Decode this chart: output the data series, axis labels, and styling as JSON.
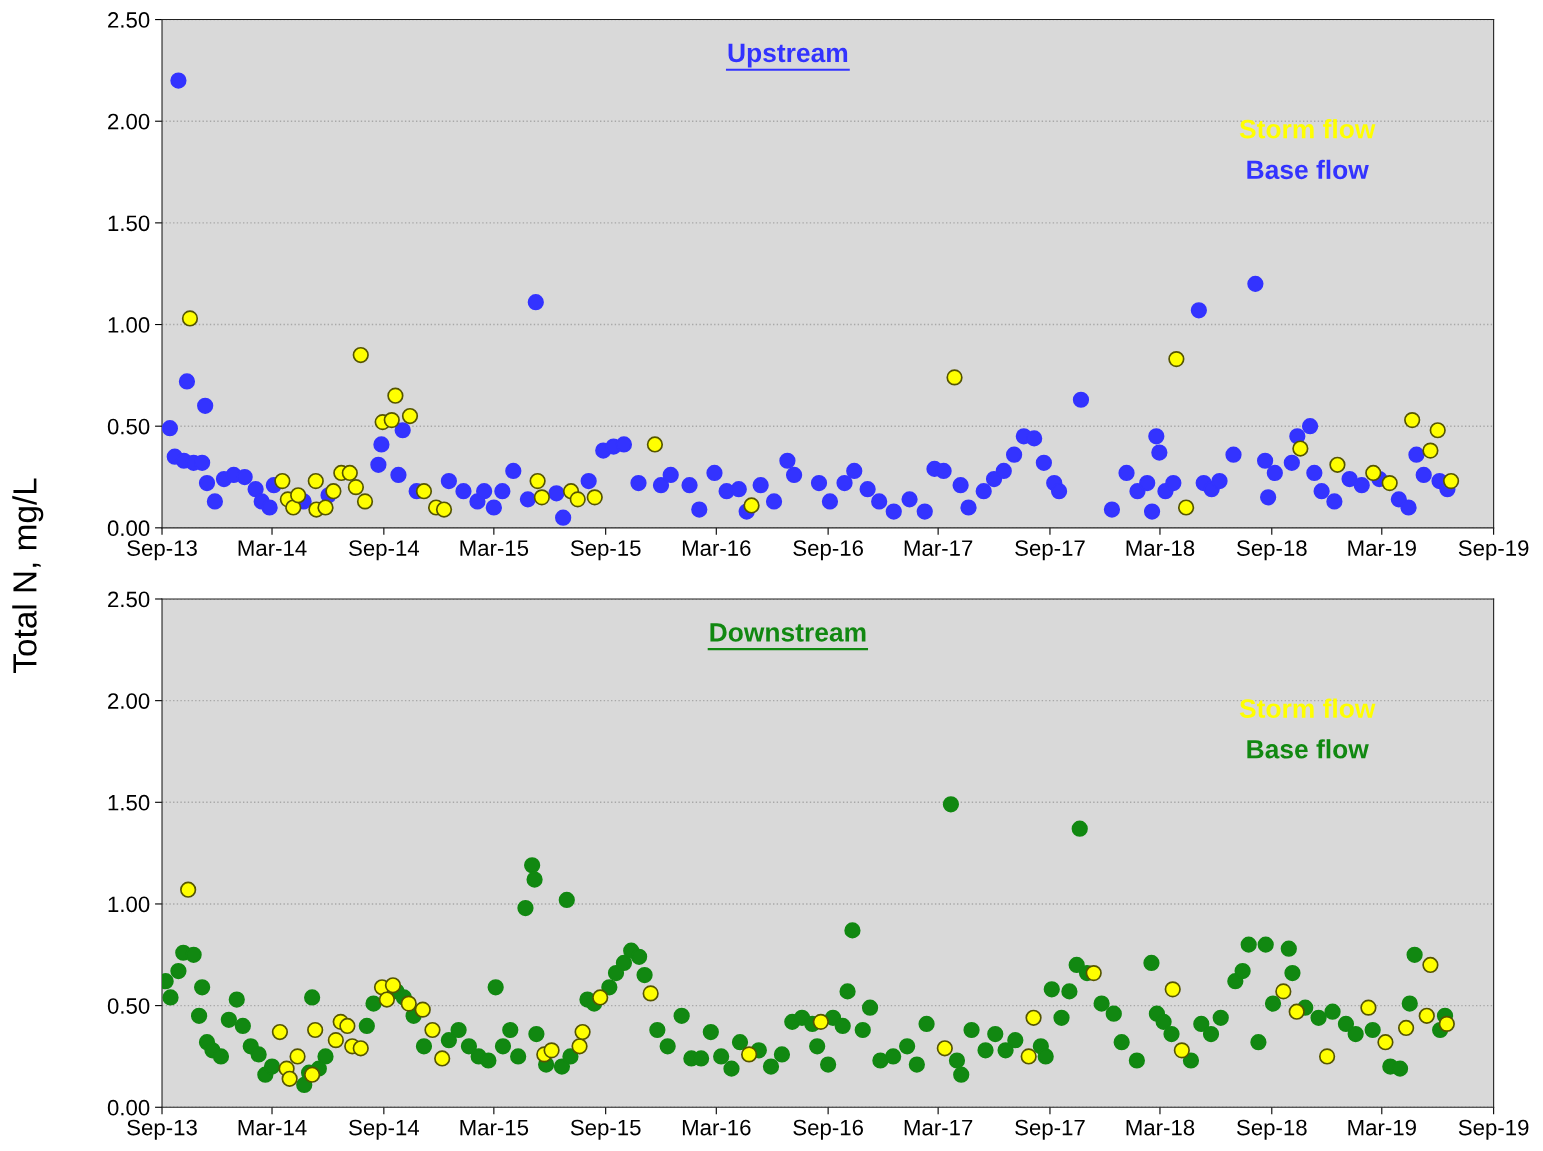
{
  "chart_data": [
    {
      "type": "scatter",
      "title": "Upstream",
      "ylabel": "Total N, mg/L",
      "xlim": [
        "2013-09",
        "2019-09"
      ],
      "ylim": [
        0,
        2.5
      ],
      "xticks": [
        {
          "value": "2013-09",
          "label": "Sep-13"
        },
        {
          "value": "2014-03",
          "label": "Mar-14"
        },
        {
          "value": "2014-09",
          "label": "Sep-14"
        },
        {
          "value": "2015-03",
          "label": "Mar-15"
        },
        {
          "value": "2015-09",
          "label": "Sep-15"
        },
        {
          "value": "2016-03",
          "label": "Mar-16"
        },
        {
          "value": "2016-09",
          "label": "Sep-16"
        },
        {
          "value": "2017-03",
          "label": "Mar-17"
        },
        {
          "value": "2017-09",
          "label": "Sep-17"
        },
        {
          "value": "2018-03",
          "label": "Mar-18"
        },
        {
          "value": "2018-09",
          "label": "Sep-18"
        },
        {
          "value": "2019-03",
          "label": "Mar-19"
        },
        {
          "value": "2019-09",
          "label": "Sep-19"
        }
      ],
      "yticks": [
        {
          "value": 0,
          "label": "0.00"
        },
        {
          "value": 0.5,
          "label": "0.50"
        },
        {
          "value": 1,
          "label": "1.00"
        },
        {
          "value": 1.5,
          "label": "1.50"
        },
        {
          "value": 2,
          "label": "2.00"
        },
        {
          "value": 2.5,
          "label": "2.50"
        }
      ],
      "grid": "y",
      "legend": "top right",
      "marker": "circle",
      "series": [
        {
          "name": "Storm flow",
          "color": "#ffff00",
          "x": [
            "2013-10-17",
            "2014-03-18",
            "2014-03-27",
            "2014-04-05",
            "2014-04-13",
            "2014-05-12",
            "2014-05-13",
            "2014-05-28",
            "2014-06-10",
            "2014-06-23",
            "2014-07-07",
            "2014-07-17",
            "2014-07-25",
            "2014-08-01",
            "2014-08-30",
            "2014-09-14",
            "2014-09-20",
            "2014-10-14",
            "2014-11-06",
            "2014-11-26",
            "2014-12-09",
            "2015-05-12",
            "2015-05-19",
            "2015-07-06",
            "2015-07-17",
            "2015-08-14",
            "2015-11-21",
            "2016-04-28",
            "2017-03-28",
            "2018-03-28",
            "2018-04-13",
            "2018-10-18",
            "2018-12-18",
            "2019-02-15",
            "2019-03-14",
            "2019-04-20",
            "2019-05-20",
            "2019-06-01",
            "2019-06-23"
          ],
          "values": [
            1.03,
            0.23,
            0.14,
            0.1,
            0.16,
            0.23,
            0.09,
            0.1,
            0.18,
            0.27,
            0.27,
            0.2,
            0.85,
            0.13,
            0.52,
            0.53,
            0.65,
            0.55,
            0.18,
            0.1,
            0.09,
            0.23,
            0.15,
            0.18,
            0.14,
            0.15,
            0.41,
            0.11,
            0.74,
            0.83,
            0.1,
            0.39,
            0.31,
            0.27,
            0.22,
            0.53,
            0.38,
            0.48,
            0.23
          ]
        },
        {
          "name": "Base flow",
          "color": "#3333ff",
          "x": [
            "2013-09-14",
            "2013-09-22",
            "2013-09-28",
            "2013-10-07",
            "2013-10-12",
            "2013-10-23",
            "2013-11-06",
            "2013-11-11",
            "2013-11-14",
            "2013-11-27",
            "2013-12-12",
            "2013-12-28",
            "2014-01-15",
            "2014-02-02",
            "2014-02-12",
            "2014-02-25",
            "2014-03-04",
            "2014-04-22",
            "2014-06-02",
            "2014-08-23",
            "2014-08-28",
            "2014-09-25",
            "2014-10-02",
            "2014-10-25",
            "2014-12-17",
            "2015-01-10",
            "2015-02-02",
            "2015-02-13",
            "2015-03-01",
            "2015-03-15",
            "2015-04-02",
            "2015-04-26",
            "2015-05-09",
            "2015-06-12",
            "2015-06-23",
            "2015-08-04",
            "2015-08-28",
            "2015-09-14",
            "2015-10-01",
            "2015-10-25",
            "2015-12-01",
            "2015-12-17",
            "2016-01-17",
            "2016-02-02",
            "2016-02-27",
            "2016-03-18",
            "2016-04-07",
            "2016-04-20",
            "2016-05-13",
            "2016-06-04",
            "2016-06-26",
            "2016-07-07",
            "2016-08-17",
            "2016-09-04",
            "2016-09-28",
            "2016-10-14",
            "2016-11-05",
            "2016-11-24",
            "2016-12-18",
            "2017-01-13",
            "2017-02-07",
            "2017-02-23",
            "2017-03-10",
            "2017-04-07",
            "2017-04-20",
            "2017-05-15",
            "2017-06-01",
            "2017-06-17",
            "2017-07-04",
            "2017-07-20",
            "2017-08-06",
            "2017-08-22",
            "2017-09-08",
            "2017-09-16",
            "2017-10-22",
            "2017-12-12",
            "2018-01-05",
            "2018-01-23",
            "2018-02-08",
            "2018-02-16",
            "2018-02-23",
            "2018-02-28",
            "2018-03-10",
            "2018-03-23",
            "2018-05-04",
            "2018-05-12",
            "2018-05-25",
            "2018-06-07",
            "2018-06-30",
            "2018-08-05",
            "2018-08-21",
            "2018-08-26",
            "2018-09-06",
            "2018-10-04",
            "2018-10-13",
            "2018-11-03",
            "2018-11-10",
            "2018-11-22",
            "2018-12-13",
            "2019-01-07",
            "2019-01-27",
            "2019-02-25",
            "2019-03-29",
            "2019-04-14",
            "2019-04-27",
            "2019-05-09",
            "2019-06-04",
            "2019-06-17"
          ],
          "values": [
            0.49,
            0.35,
            2.2,
            0.33,
            0.72,
            0.32,
            0.32,
            0.6,
            0.22,
            0.13,
            0.24,
            0.26,
            0.25,
            0.19,
            0.13,
            0.1,
            0.21,
            0.13,
            0.16,
            0.31,
            0.41,
            0.26,
            0.48,
            0.18,
            0.23,
            0.18,
            0.13,
            0.18,
            0.1,
            0.18,
            0.28,
            0.14,
            1.11,
            0.17,
            0.05,
            0.23,
            0.38,
            0.4,
            0.41,
            0.22,
            0.21,
            0.26,
            0.21,
            0.09,
            0.27,
            0.18,
            0.19,
            0.08,
            0.21,
            0.13,
            0.33,
            0.26,
            0.22,
            0.13,
            0.22,
            0.28,
            0.19,
            0.13,
            0.08,
            0.14,
            0.08,
            0.29,
            0.28,
            0.21,
            0.1,
            0.18,
            0.24,
            0.28,
            0.36,
            0.45,
            0.44,
            0.32,
            0.22,
            0.18,
            0.63,
            0.09,
            0.27,
            0.18,
            0.22,
            0.08,
            0.45,
            0.37,
            0.18,
            0.22,
            1.07,
            0.22,
            0.19,
            0.23,
            0.36,
            1.2,
            0.33,
            0.15,
            0.27,
            0.32,
            0.45,
            0.5,
            0.27,
            0.18,
            0.13,
            0.24,
            0.21,
            0.24,
            0.14,
            0.1,
            0.36,
            0.26,
            0.23,
            0.19
          ]
        }
      ]
    },
    {
      "type": "scatter",
      "title": "Downstream",
      "xlim": [
        "2013-09",
        "2019-09"
      ],
      "ylim": [
        0,
        2.5
      ],
      "xticks": [
        {
          "value": "2013-09",
          "label": "Sep-13"
        },
        {
          "value": "2014-03",
          "label": "Mar-14"
        },
        {
          "value": "2014-09",
          "label": "Sep-14"
        },
        {
          "value": "2015-03",
          "label": "Mar-15"
        },
        {
          "value": "2015-09",
          "label": "Sep-15"
        },
        {
          "value": "2016-03",
          "label": "Mar-16"
        },
        {
          "value": "2016-09",
          "label": "Sep-16"
        },
        {
          "value": "2017-03",
          "label": "Mar-17"
        },
        {
          "value": "2017-09",
          "label": "Sep-17"
        },
        {
          "value": "2018-03",
          "label": "Mar-18"
        },
        {
          "value": "2018-09",
          "label": "Sep-18"
        },
        {
          "value": "2019-03",
          "label": "Mar-19"
        },
        {
          "value": "2019-09",
          "label": "Sep-19"
        }
      ],
      "yticks": [
        {
          "value": 0,
          "label": "0.00"
        },
        {
          "value": 0.5,
          "label": "0.50"
        },
        {
          "value": 1,
          "label": "1.00"
        },
        {
          "value": 1.5,
          "label": "1.50"
        },
        {
          "value": 2,
          "label": "2.00"
        },
        {
          "value": 2.5,
          "label": "2.50"
        }
      ],
      "grid": "y",
      "legend": "top right",
      "marker": "circle",
      "series": [
        {
          "name": "Storm flow",
          "color": "#ffff00",
          "x": [
            "2013-10-14",
            "2014-03-14",
            "2014-03-25",
            "2014-03-30",
            "2014-04-12",
            "2014-05-06",
            "2014-05-11",
            "2014-06-14",
            "2014-06-22",
            "2014-07-03",
            "2014-07-11",
            "2014-07-25",
            "2014-08-29",
            "2014-09-06",
            "2014-09-16",
            "2014-10-12",
            "2014-11-04",
            "2014-11-20",
            "2014-12-06",
            "2015-05-23",
            "2015-06-04",
            "2015-07-20",
            "2015-07-25",
            "2015-08-23",
            "2015-11-14",
            "2016-04-24",
            "2016-08-20",
            "2017-03-12",
            "2017-07-28",
            "2017-08-05",
            "2017-11-12",
            "2018-03-22",
            "2018-04-06",
            "2018-09-20",
            "2018-10-12",
            "2018-12-01",
            "2019-02-07",
            "2019-03-07",
            "2019-04-10",
            "2019-05-14",
            "2019-05-20",
            "2019-06-16"
          ],
          "values": [
            1.07,
            0.37,
            0.19,
            0.14,
            0.25,
            0.16,
            0.38,
            0.33,
            0.42,
            0.4,
            0.3,
            0.29,
            0.59,
            0.53,
            0.6,
            0.51,
            0.48,
            0.38,
            0.24,
            0.26,
            0.28,
            0.3,
            0.37,
            0.54,
            0.56,
            0.26,
            0.42,
            0.29,
            0.25,
            0.44,
            0.66,
            0.58,
            0.28,
            0.57,
            0.47,
            0.25,
            0.49,
            0.32,
            0.39,
            0.45,
            0.7,
            0.41
          ]
        },
        {
          "name": "Base flow",
          "color": "#118811",
          "x": [
            "2013-09-07",
            "2013-09-15",
            "2013-09-28",
            "2013-10-06",
            "2013-10-23",
            "2013-11-01",
            "2013-11-06",
            "2013-11-14",
            "2013-11-23",
            "2013-12-07",
            "2013-12-20",
            "2014-01-02",
            "2014-01-12",
            "2014-01-25",
            "2014-02-07",
            "2014-02-18",
            "2014-03-01",
            "2014-04-23",
            "2014-05-01",
            "2014-05-06",
            "2014-05-17",
            "2014-05-28",
            "2014-08-04",
            "2014-08-15",
            "2014-09-22",
            "2014-10-04",
            "2014-10-20",
            "2014-11-06",
            "2014-12-17",
            "2015-01-02",
            "2015-01-19",
            "2015-02-04",
            "2015-02-20",
            "2015-03-04",
            "2015-03-16",
            "2015-03-28",
            "2015-04-10",
            "2015-04-22",
            "2015-05-03",
            "2015-05-07",
            "2015-05-10",
            "2015-05-26",
            "2015-06-21",
            "2015-06-29",
            "2015-07-05",
            "2015-08-02",
            "2015-08-13",
            "2015-09-07",
            "2015-09-18",
            "2015-10-01",
            "2015-10-13",
            "2015-10-26",
            "2015-11-04",
            "2015-11-25",
            "2015-12-12",
            "2016-01-04",
            "2016-01-20",
            "2016-02-05",
            "2016-02-21",
            "2016-03-09",
            "2016-03-26",
            "2016-04-09",
            "2016-05-10",
            "2016-05-30",
            "2016-06-17",
            "2016-07-04",
            "2016-07-20",
            "2016-08-06",
            "2016-08-14",
            "2016-09-01",
            "2016-09-09",
            "2016-09-25",
            "2016-10-03",
            "2016-10-11",
            "2016-10-28",
            "2016-11-09",
            "2016-11-26",
            "2016-12-17",
            "2017-01-09",
            "2017-01-25",
            "2017-02-10",
            "2017-03-22",
            "2017-04-01",
            "2017-04-08",
            "2017-04-25",
            "2017-05-18",
            "2017-06-03",
            "2017-06-20",
            "2017-07-06",
            "2017-08-17",
            "2017-08-25",
            "2017-09-04",
            "2017-09-20",
            "2017-10-03",
            "2017-10-15",
            "2017-10-20",
            "2017-11-01",
            "2017-11-25",
            "2017-12-15",
            "2017-12-28",
            "2018-01-22",
            "2018-02-15",
            "2018-02-24",
            "2018-03-07",
            "2018-03-20",
            "2018-04-21",
            "2018-05-08",
            "2018-05-24",
            "2018-06-09",
            "2018-07-03",
            "2018-07-15",
            "2018-07-25",
            "2018-08-10",
            "2018-08-22",
            "2018-09-03",
            "2018-09-29",
            "2018-10-05",
            "2018-10-26",
            "2018-11-17",
            "2018-12-10",
            "2019-01-01",
            "2019-01-17",
            "2019-02-14",
            "2019-03-15",
            "2019-03-31",
            "2019-04-16",
            "2019-04-24",
            "2019-06-05",
            "2019-06-13"
          ],
          "values": [
            0.62,
            0.54,
            0.67,
            0.76,
            0.75,
            0.45,
            0.59,
            0.32,
            0.28,
            0.25,
            0.43,
            0.53,
            0.4,
            0.3,
            0.26,
            0.16,
            0.2,
            0.11,
            0.17,
            0.54,
            0.19,
            0.25,
            0.4,
            0.51,
            0.57,
            0.54,
            0.45,
            0.3,
            0.33,
            0.38,
            0.3,
            0.25,
            0.23,
            0.59,
            0.3,
            0.38,
            0.25,
            0.98,
            1.19,
            1.12,
            0.36,
            0.21,
            0.2,
            1.02,
            0.25,
            0.53,
            0.51,
            0.59,
            0.66,
            0.71,
            0.77,
            0.74,
            0.65,
            0.38,
            0.3,
            0.45,
            0.24,
            0.24,
            0.37,
            0.25,
            0.19,
            0.32,
            0.28,
            0.2,
            0.26,
            0.42,
            0.44,
            0.41,
            0.3,
            0.21,
            0.44,
            0.4,
            0.57,
            0.87,
            0.38,
            0.49,
            0.23,
            0.25,
            0.3,
            0.21,
            0.41,
            1.49,
            0.23,
            0.16,
            0.38,
            0.28,
            0.36,
            0.28,
            0.33,
            0.3,
            0.25,
            0.58,
            0.44,
            0.57,
            0.7,
            1.37,
            0.66,
            0.51,
            0.46,
            0.32,
            0.23,
            0.71,
            0.46,
            0.42,
            0.36,
            0.23,
            0.41,
            0.36,
            0.44,
            0.62,
            0.67,
            0.8,
            0.32,
            0.8,
            0.51,
            0.78,
            0.66,
            0.49,
            0.44,
            0.47,
            0.41,
            0.36,
            0.38,
            0.2,
            0.19,
            0.51,
            0.75,
            0.38,
            0.45
          ]
        }
      ]
    }
  ]
}
